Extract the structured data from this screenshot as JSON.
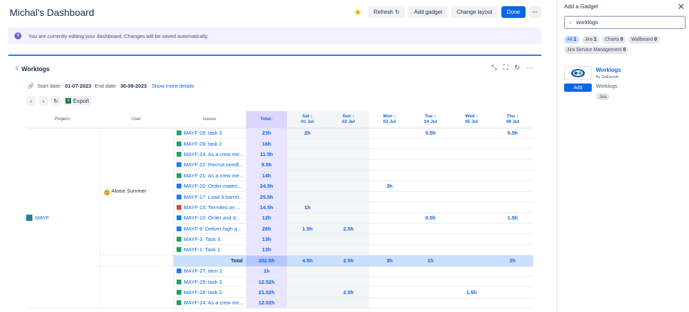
{
  "header": {
    "title": "Michal's Dashboard",
    "refresh_label": "Refresh",
    "add_gadget_label": "Add gadget",
    "change_layout_label": "Change layout",
    "done_label": "Done",
    "more_label": "···"
  },
  "banner": {
    "text": "You are currently editing your dashboard. Changes will be saved automatically."
  },
  "gadget": {
    "title": "Worklogs",
    "start_label": "Start date:",
    "start_date": "01-07-2023",
    "end_label": "End date:",
    "end_date": "30-09-2023",
    "details_link": "Show more details",
    "export_label": "Export"
  },
  "table": {
    "headers": {
      "project": "Project",
      "user": "User",
      "issues": "Issues",
      "total": "Total"
    },
    "days": [
      {
        "d": "Sat",
        "date": "01 Jul",
        "weekend": true
      },
      {
        "d": "Sun",
        "date": "02 Jul",
        "weekend": true
      },
      {
        "d": "Mon",
        "date": "03 Jul",
        "weekend": false
      },
      {
        "d": "Tue",
        "date": "04 Jul",
        "weekend": false
      },
      {
        "d": "Wed",
        "date": "05 Jul",
        "weekend": false
      },
      {
        "d": "Thu",
        "date": "06 Jul",
        "weekend": false
      }
    ],
    "project_name": "MAYF",
    "user1": {
      "name": "Aloise Summer",
      "initials": "AS",
      "rows": [
        {
          "issue": "MAYF-29: task 3",
          "type": "green",
          "total": "23h",
          "days": [
            "2h",
            "",
            "",
            "0.5h",
            "",
            "0.5h"
          ]
        },
        {
          "issue": "MAYF-28: task 2",
          "type": "green",
          "total": "16h",
          "days": [
            "",
            "",
            "",
            "",
            "",
            ""
          ]
        },
        {
          "issue": "MAYF-24: As a crew me...",
          "type": "green",
          "total": "11.5h",
          "days": [
            "",
            "",
            "",
            "",
            "",
            ""
          ]
        },
        {
          "issue": "MAYF-22: Recruit needl...",
          "type": "blue",
          "total": "9.5h",
          "days": [
            "",
            "",
            "",
            "",
            "",
            ""
          ]
        },
        {
          "issue": "MAYF-21: As a crew me...",
          "type": "green",
          "total": "14h",
          "days": [
            "",
            "",
            "",
            "",
            "",
            ""
          ]
        },
        {
          "issue": "MAYF-20: Order materi...",
          "type": "blue",
          "total": "24.5h",
          "days": [
            "",
            "",
            "3h",
            "",
            "",
            ""
          ]
        },
        {
          "issue": "MAYF-17: Load 3 barrel...",
          "type": "blue",
          "total": "25.5h",
          "days": [
            "",
            "",
            "",
            "",
            "",
            ""
          ]
        },
        {
          "issue": "MAYF-13: Termites on ...",
          "type": "red",
          "total": "14.5h",
          "days": [
            "1h",
            "",
            "",
            "",
            "",
            ""
          ]
        },
        {
          "issue": "MAYF-10: Order and d...",
          "type": "blue",
          "total": "12h",
          "days": [
            "",
            "",
            "",
            "0.5h",
            "",
            "1.5h"
          ]
        },
        {
          "issue": "MAYF-9: Deliver high q...",
          "type": "blue",
          "total": "26h",
          "days": [
            "1.5h",
            "2.5h",
            "",
            "",
            "",
            ""
          ]
        },
        {
          "issue": "MAYF-3: Task 3",
          "type": "green",
          "total": "13h",
          "days": [
            "",
            "",
            "",
            "",
            "",
            ""
          ]
        },
        {
          "issue": "MAYF-1: Task 1",
          "type": "green",
          "total": "13h",
          "days": [
            "",
            "",
            "",
            "",
            "",
            ""
          ]
        }
      ],
      "total_label": "Total",
      "total": "202.5h",
      "day_totals": [
        "4.5h",
        "2.5h",
        "3h",
        "1h",
        "",
        "2h"
      ]
    },
    "user2_rows": [
      {
        "issue": "MAYF-27: item 2",
        "type": "blue",
        "total": "1h",
        "days": [
          "",
          "",
          "",
          "",
          "",
          ""
        ]
      },
      {
        "issue": "MAYF-29: task 3",
        "type": "green",
        "total": "12.52h",
        "days": [
          "",
          "",
          "",
          "",
          "",
          ""
        ]
      },
      {
        "issue": "MAYF-28: task 2",
        "type": "green",
        "total": "21.02h",
        "days": [
          "",
          "2.5h",
          "",
          "",
          "1.5h",
          ""
        ]
      },
      {
        "issue": "MAYF-24: As a crew me...",
        "type": "green",
        "total": "12.02h",
        "days": [
          "",
          "",
          "",
          "",
          "",
          ""
        ]
      }
    ]
  },
  "panel": {
    "title": "Add a Gadget",
    "search_value": "worklogs",
    "filters": [
      {
        "label": "All",
        "count": "1",
        "active": true
      },
      {
        "label": "Jira",
        "count": "1",
        "active": false
      },
      {
        "label": "Charts",
        "count": "0",
        "active": false
      },
      {
        "label": "Wallboard",
        "count": "0",
        "active": false
      },
      {
        "label": "Jira Service Management",
        "count": "0",
        "active": false
      }
    ],
    "gadget_name": "Worklogs",
    "gadget_by": "By SolDevelo",
    "gadget_desc": "Worklogs",
    "gadget_tag": "Jira",
    "add_label": "Add"
  }
}
